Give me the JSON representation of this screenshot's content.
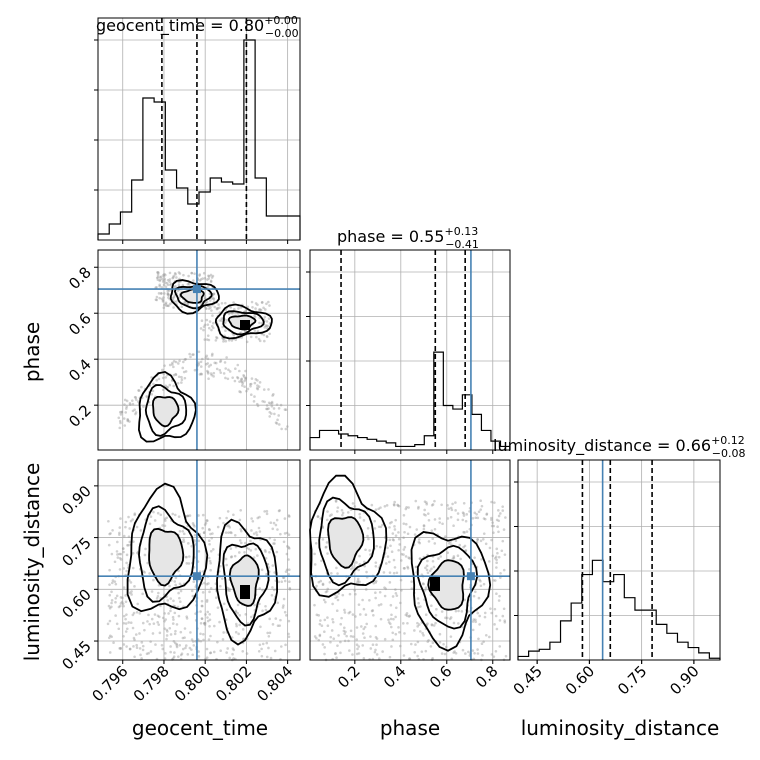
{
  "chart_data": {
    "type": "corner",
    "parameters": [
      {
        "key": "gt",
        "label": "geocent_time",
        "truth": 0.7996,
        "title": {
          "name": "geocent_time = 0.80",
          "sup": "+0.00",
          "sub": "−0.00"
        },
        "quantiles": [
          0.7979,
          0.7996,
          0.802
        ],
        "ticks": [
          "0.796",
          "0.798",
          "0.800",
          "0.802",
          "0.804"
        ],
        "xlim": [
          0.7948,
          0.8046
        ],
        "hist": [
          0.03,
          0.08,
          0.14,
          0.3,
          0.71,
          0.69,
          0.35,
          0.26,
          0.18,
          0.24,
          0.31,
          0.29,
          0.28,
          1.0,
          0.31,
          0.12,
          0.12,
          0.12
        ]
      },
      {
        "key": "ph",
        "label": "phase",
        "truth": 0.705,
        "title": {
          "name": "phase = 0.55",
          "sup": "+0.13",
          "sub": "−0.41"
        },
        "quantiles": [
          0.14,
          0.55,
          0.68
        ],
        "ticks": [
          "0.2",
          "0.4",
          "0.6",
          "0.8"
        ],
        "xlim": [
          0.005,
          0.875
        ],
        "hist": [
          0.07,
          0.11,
          0.11,
          0.09,
          0.08,
          0.07,
          0.06,
          0.05,
          0.04,
          0.02,
          0.02,
          0.03,
          0.08,
          0.55,
          0.25,
          0.23,
          0.31,
          0.2,
          0.11,
          0.05,
          0.02
        ]
      },
      {
        "key": "ld",
        "label": "luminosity_distance",
        "truth": 0.638,
        "title": {
          "name": "luminosity_distance = 0.66",
          "sup": "+0.12",
          "sub": "−0.08"
        },
        "quantiles": [
          0.58,
          0.66,
          0.78
        ],
        "ticks": [
          "0.45",
          "0.60",
          "0.75",
          "0.90"
        ],
        "xlim": [
          0.395,
          0.975
        ],
        "hist": [
          0.02,
          0.05,
          0.06,
          0.1,
          0.22,
          0.32,
          0.48,
          0.56,
          0.44,
          0.48,
          0.35,
          0.28,
          0.28,
          0.2,
          0.15,
          0.1,
          0.07,
          0.04,
          0.01
        ]
      }
    ],
    "ylims": {
      "ph": [
        0.005,
        0.875
      ],
      "ld": [
        0.395,
        0.975
      ]
    }
  }
}
